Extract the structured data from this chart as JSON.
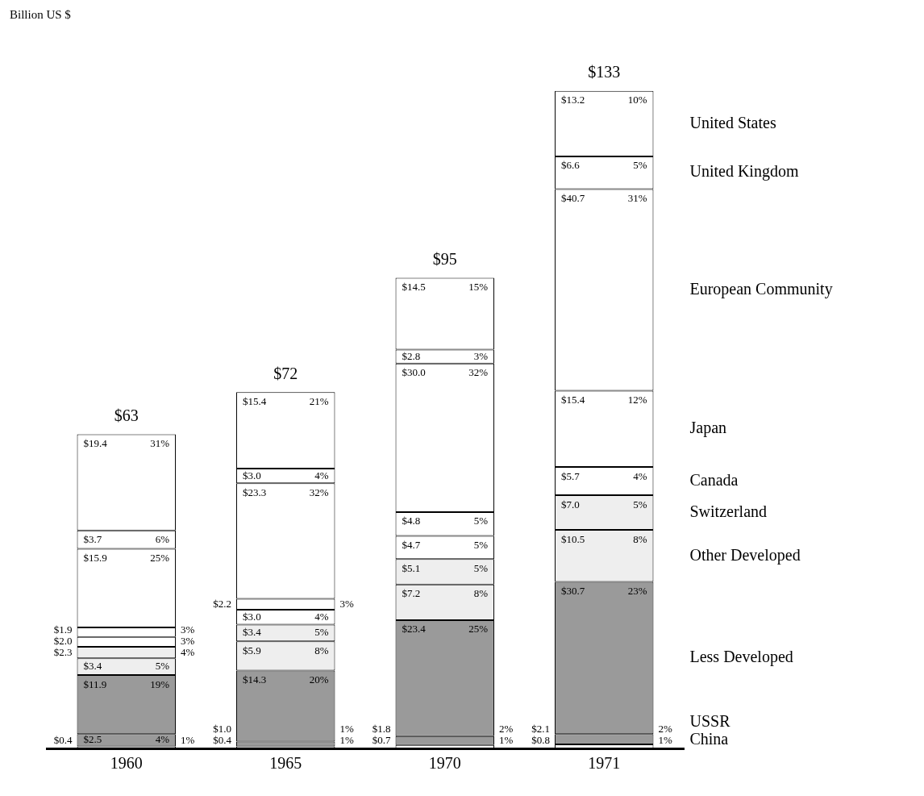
{
  "chart_data": {
    "type": "bar",
    "stacked": true,
    "annotations": [
      "Billion US $"
    ],
    "categories": [
      "1960",
      "1965",
      "1970",
      "1971"
    ],
    "legend": false,
    "grid": false,
    "series": [
      {
        "name": "China",
        "color": "#ffffff",
        "values": [
          0.4,
          0.4,
          0.7,
          0.8
        ],
        "value_labels": [
          "$0.4 1%",
          "$0.4 1%",
          "$0.7 1%",
          "$0.8 1%"
        ]
      },
      {
        "name": "USSR",
        "color": "#9a9a9a",
        "values": [
          2.5,
          1.0,
          1.8,
          2.1
        ],
        "value_labels": [
          "$2.5 4%",
          "$1.0 1%",
          "$1.8 2%",
          "$2.1 2%"
        ]
      },
      {
        "name": "Less Developed",
        "color": "#9a9a9a",
        "values": [
          11.9,
          14.3,
          23.4,
          30.7
        ],
        "value_labels": [
          "$11.9 19%",
          "$14.3 20%",
          "$23.4 25%",
          "$30.7 23%"
        ]
      },
      {
        "name": "Other Developed",
        "color": "#eeeeee",
        "values": [
          3.4,
          5.9,
          7.2,
          10.5
        ],
        "value_labels": [
          "$3.4 5%",
          "$5.9 8%",
          "$7.2 8%",
          "$10.5 8%"
        ]
      },
      {
        "name": "Switzerland",
        "color": "#eeeeee",
        "values": [
          2.3,
          3.4,
          5.1,
          7.0
        ],
        "value_labels": [
          "$2.3 4%",
          "$3.4 5%",
          "$5.1 5%",
          "$7.0 5%"
        ]
      },
      {
        "name": "Canada",
        "color": "#ffffff",
        "values": [
          2.0,
          3.0,
          4.7,
          5.7
        ],
        "value_labels": [
          "$2.0 3%",
          "$3.0 4%",
          "$4.7 5%",
          "$5.7 4%"
        ]
      },
      {
        "name": "Japan",
        "color": "#ffffff",
        "values": [
          1.9,
          2.2,
          4.8,
          15.4
        ],
        "value_labels": [
          "$1.9 3%",
          "$2.2 3%",
          "$4.8 5%",
          "$15.4 12%"
        ]
      },
      {
        "name": "European Community",
        "color": "#ffffff",
        "values": [
          15.9,
          23.3,
          30.0,
          40.7
        ],
        "value_labels": [
          "$15.9 25%",
          "$23.3 32%",
          "$30.0 32%",
          "$40.7 31%"
        ]
      },
      {
        "name": "United Kingdom",
        "color": "#ffffff",
        "values": [
          3.7,
          3.0,
          2.8,
          6.6
        ],
        "value_labels": [
          "$3.7 6%",
          "$3.0 4%",
          "$2.8 3%",
          "$6.6 5%"
        ]
      },
      {
        "name": "United States",
        "color": "#ffffff",
        "values": [
          19.4,
          15.4,
          14.5,
          13.2
        ],
        "value_labels": [
          "$19.4 31%",
          "$15.4 21%",
          "$14.5 15%",
          "$13.2 10%"
        ]
      }
    ],
    "totals": [
      "$63",
      "$72",
      "$95",
      "$133"
    ]
  }
}
